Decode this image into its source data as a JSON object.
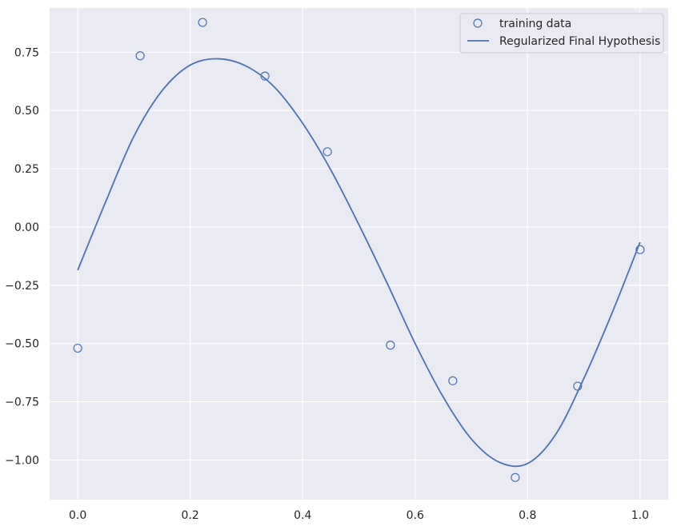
{
  "chart_data": {
    "type": "scatter",
    "title": "",
    "xlabel": "",
    "ylabel": "",
    "xlim": [
      -0.05,
      1.05
    ],
    "ylim": [
      -1.17,
      0.94
    ],
    "grid": true,
    "legend_position": "top-right",
    "xticks": [
      0.0,
      0.2,
      0.4,
      0.6,
      0.8,
      1.0
    ],
    "xtick_labels": [
      "0.0",
      "0.2",
      "0.4",
      "0.6",
      "0.8",
      "1.0"
    ],
    "yticks": [
      -1.0,
      -0.75,
      -0.5,
      -0.25,
      0.0,
      0.25,
      0.5,
      0.75
    ],
    "ytick_labels": [
      "−1.00",
      "−0.75",
      "−0.50",
      "−0.25",
      "0.00",
      "0.25",
      "0.50",
      "0.75"
    ],
    "series": [
      {
        "name": "training data",
        "kind": "scatter",
        "marker": "open-circle",
        "color": "#4c72b0",
        "x": [
          0.0,
          0.111,
          0.222,
          0.333,
          0.444,
          0.556,
          0.667,
          0.778,
          0.889,
          1.0
        ],
        "y": [
          -0.52,
          0.735,
          0.878,
          0.648,
          0.323,
          -0.507,
          -0.66,
          -1.075,
          -0.683,
          -0.097
        ]
      },
      {
        "name": "Regularized Final Hypothesis",
        "kind": "line",
        "color": "#4c72b0",
        "x": [
          0.0,
          0.05,
          0.1,
          0.15,
          0.2,
          0.25,
          0.3,
          0.35,
          0.4,
          0.45,
          0.5,
          0.55,
          0.6,
          0.65,
          0.7,
          0.75,
          0.8,
          0.85,
          0.9,
          0.95,
          1.0
        ],
        "y": [
          -0.185,
          0.11,
          0.39,
          0.585,
          0.695,
          0.722,
          0.69,
          0.6,
          0.445,
          0.245,
          0.01,
          -0.24,
          -0.5,
          -0.73,
          -0.91,
          -1.01,
          -1.015,
          -0.89,
          -0.65,
          -0.37,
          -0.065
        ]
      }
    ]
  },
  "colors": {
    "plot_background": "#eaeaf2",
    "grid": "#ffffff",
    "series": "#4c72b0"
  }
}
